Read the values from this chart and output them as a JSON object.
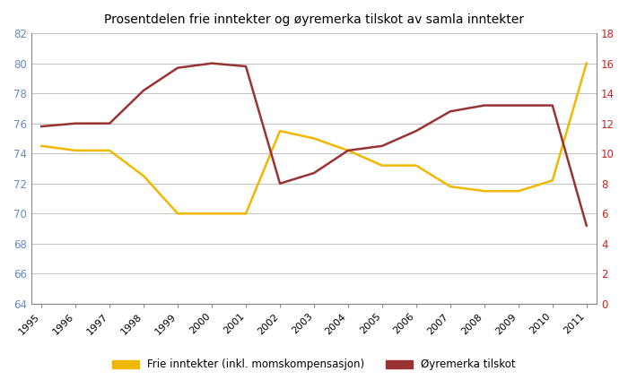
{
  "title": "Prosentdelen frie inntekter og øyremerka tilskot av samla inntekter",
  "years": [
    1995,
    1996,
    1997,
    1998,
    1999,
    2000,
    2001,
    2002,
    2003,
    2004,
    2005,
    2006,
    2007,
    2008,
    2009,
    2010,
    2011
  ],
  "frie_inntekter": [
    74.5,
    74.2,
    74.2,
    72.5,
    70.0,
    70.0,
    70.0,
    75.5,
    75.0,
    74.2,
    73.2,
    73.2,
    71.8,
    71.5,
    71.5,
    72.2,
    80.0
  ],
  "oyremerkede": [
    11.8,
    12.0,
    12.0,
    14.2,
    15.7,
    16.0,
    15.8,
    8.0,
    8.7,
    10.2,
    10.5,
    11.5,
    12.8,
    13.2,
    13.2,
    13.2,
    5.2
  ],
  "frie_color": "#f0b800",
  "oyre_color": "#993333",
  "left_ylim": [
    64,
    82
  ],
  "right_ylim": [
    0,
    18
  ],
  "left_yticks": [
    64,
    66,
    68,
    70,
    72,
    74,
    76,
    78,
    80,
    82
  ],
  "right_yticks": [
    0,
    2,
    4,
    6,
    8,
    10,
    12,
    14,
    16,
    18
  ],
  "left_tick_color": "#6688cc",
  "right_tick_color": "#cc2222",
  "legend_frie": "Frie inntekter (inkl. momskompensasjon)",
  "legend_oyre": "Øyremerka tilskot",
  "linewidth": 1.8,
  "grid_color": "#aaaaaa",
  "background_color": "#ffffff"
}
